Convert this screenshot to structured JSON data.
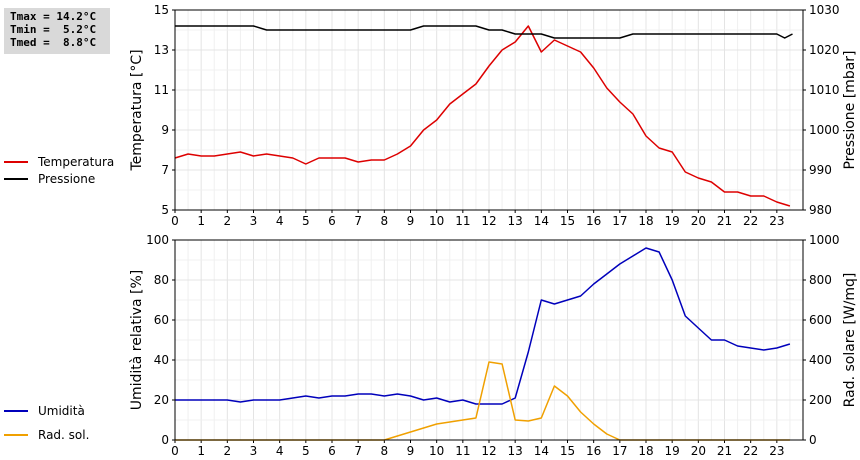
{
  "stats": {
    "tmax": "Tmax = 14.2°C",
    "tmin": "Tmin =  5.2°C",
    "tmed": "Tmed =  8.8°C"
  },
  "chart_data": [
    {
      "type": "line",
      "xlim": [
        0,
        24
      ],
      "x_ticks": [
        "0",
        "1",
        "2",
        "3",
        "4",
        "5",
        "6",
        "7",
        "8",
        "9",
        "10",
        "11",
        "12",
        "13",
        "14",
        "15",
        "16",
        "17",
        "18",
        "19",
        "20",
        "21",
        "22",
        "23"
      ],
      "ylabel": "Temperatura [°C]",
      "y2label": "Pressione [mbar]",
      "ylim": [
        5,
        15
      ],
      "y2lim": [
        980,
        1030
      ],
      "y_ticks": [
        "5",
        "7",
        "9",
        "11",
        "13",
        "15"
      ],
      "y2_ticks": [
        "980",
        "990",
        "1000",
        "1010",
        "1020",
        "1030"
      ],
      "grid": true,
      "legend": [
        "Temperatura",
        "Pressione"
      ],
      "series": [
        {
          "name": "Temperatura",
          "color": "#dd0000",
          "axis": "left",
          "x": [
            0,
            0.5,
            1,
            1.5,
            2,
            2.5,
            3,
            3.5,
            4,
            4.5,
            5,
            5.5,
            6,
            6.5,
            7,
            7.5,
            8,
            8.5,
            9,
            9.5,
            10,
            10.5,
            11,
            11.5,
            12,
            12.5,
            13,
            13.5,
            14,
            14.5,
            15,
            15.5,
            16,
            16.5,
            17,
            17.5,
            18,
            18.5,
            19,
            19.5,
            20,
            20.5,
            21,
            21.5,
            22,
            22.5,
            23,
            23.5
          ],
          "values": [
            7.6,
            7.8,
            7.7,
            7.7,
            7.8,
            7.9,
            7.7,
            7.8,
            7.7,
            7.6,
            7.3,
            7.6,
            7.6,
            7.6,
            7.4,
            7.5,
            7.5,
            7.8,
            8.2,
            9.0,
            9.5,
            10.3,
            10.8,
            11.3,
            12.2,
            13.0,
            13.4,
            14.2,
            12.9,
            13.5,
            13.2,
            12.9,
            12.1,
            11.1,
            10.4,
            9.8,
            8.7,
            8.1,
            7.9,
            6.9,
            6.6,
            6.4,
            5.9,
            5.9,
            5.7,
            5.7,
            5.4,
            5.2
          ]
        },
        {
          "name": "Pressione",
          "color": "#000000",
          "axis": "right",
          "x": [
            0,
            1,
            2,
            3,
            3.5,
            4,
            5,
            6,
            7,
            8,
            9,
            9.5,
            10,
            11,
            11.5,
            12,
            12.5,
            13,
            14,
            14.5,
            15,
            16,
            17,
            17.5,
            18,
            19,
            20,
            21,
            22,
            23,
            23.3,
            23.6
          ],
          "values": [
            1026,
            1026,
            1026,
            1026,
            1025,
            1025,
            1025,
            1025,
            1025,
            1025,
            1025,
            1026,
            1026,
            1026,
            1026,
            1025,
            1025,
            1024,
            1024,
            1023,
            1023,
            1023,
            1023,
            1024,
            1024,
            1024,
            1024,
            1024,
            1024,
            1024,
            1023,
            1024
          ]
        }
      ]
    },
    {
      "type": "line",
      "xlim": [
        0,
        24
      ],
      "x_ticks": [
        "0",
        "1",
        "2",
        "3",
        "4",
        "5",
        "6",
        "7",
        "8",
        "9",
        "10",
        "11",
        "12",
        "13",
        "14",
        "15",
        "16",
        "17",
        "18",
        "19",
        "20",
        "21",
        "22",
        "23"
      ],
      "ylabel": "Umidità relativa [%]",
      "y2label": "Rad. solare [W/mq]",
      "ylim": [
        0,
        100
      ],
      "y2lim": [
        0,
        1000
      ],
      "y_ticks": [
        "0",
        "20",
        "40",
        "60",
        "80",
        "100"
      ],
      "y2_ticks": [
        "0",
        "200",
        "400",
        "600",
        "800",
        "1000"
      ],
      "grid": true,
      "legend": [
        "Umidità",
        "Rad. sol."
      ],
      "series": [
        {
          "name": "Umidità",
          "color": "#0000bb",
          "axis": "left",
          "x": [
            0,
            0.5,
            1,
            1.5,
            2,
            2.5,
            3,
            3.5,
            4,
            4.5,
            5,
            5.5,
            6,
            6.5,
            7,
            7.5,
            8,
            8.5,
            9,
            9.5,
            10,
            10.5,
            11,
            11.5,
            12,
            12.5,
            13,
            13.5,
            14,
            14.5,
            15,
            15.5,
            16,
            16.5,
            17,
            17.5,
            18,
            18.5,
            19,
            19.5,
            20,
            20.5,
            21,
            21.5,
            22,
            22.5,
            23,
            23.5
          ],
          "values": [
            20,
            20,
            20,
            20,
            20,
            19,
            20,
            20,
            20,
            21,
            22,
            21,
            22,
            22,
            23,
            23,
            22,
            23,
            22,
            20,
            21,
            19,
            20,
            18,
            18,
            18,
            21,
            44,
            70,
            68,
            70,
            72,
            78,
            83,
            88,
            92,
            96,
            94,
            80,
            62,
            56,
            50,
            50,
            47,
            46,
            45,
            46,
            48
          ]
        },
        {
          "name": "Rad. sol.",
          "color": "#f0a000",
          "axis": "right",
          "x": [
            0,
            1,
            2,
            3,
            4,
            5,
            6,
            7,
            8,
            8.5,
            9,
            9.5,
            10,
            10.5,
            11,
            11.5,
            12,
            12.5,
            13,
            13.5,
            14,
            14.5,
            15,
            15.5,
            16,
            16.5,
            17,
            18,
            19,
            20,
            21,
            22,
            23,
            23.5
          ],
          "values": [
            0,
            0,
            0,
            0,
            0,
            0,
            0,
            0,
            0,
            20,
            40,
            60,
            80,
            90,
            100,
            110,
            390,
            380,
            100,
            95,
            110,
            270,
            220,
            140,
            80,
            30,
            0,
            0,
            0,
            0,
            0,
            0,
            0,
            0
          ]
        }
      ]
    }
  ]
}
